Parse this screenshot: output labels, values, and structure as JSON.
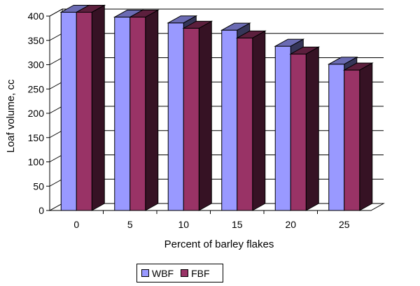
{
  "chart_data": {
    "type": "bar",
    "title": "",
    "xlabel": "Percent of barley flakes",
    "ylabel": "Loaf volume, cc",
    "categories": [
      "0",
      "5",
      "10",
      "15",
      "20",
      "25"
    ],
    "ylim": [
      0,
      400
    ],
    "yticks": [
      "0",
      "50",
      "100",
      "150",
      "200",
      "250",
      "300",
      "350",
      "400"
    ],
    "grid": true,
    "legend_position": "bottom",
    "series": [
      {
        "name": "WBF",
        "values": [
          408,
          398,
          386,
          371,
          338,
          301
        ],
        "color": "#9999ff"
      },
      {
        "name": "FBF",
        "values": [
          408,
          398,
          375,
          355,
          322,
          289
        ],
        "color": "#993366"
      }
    ]
  }
}
